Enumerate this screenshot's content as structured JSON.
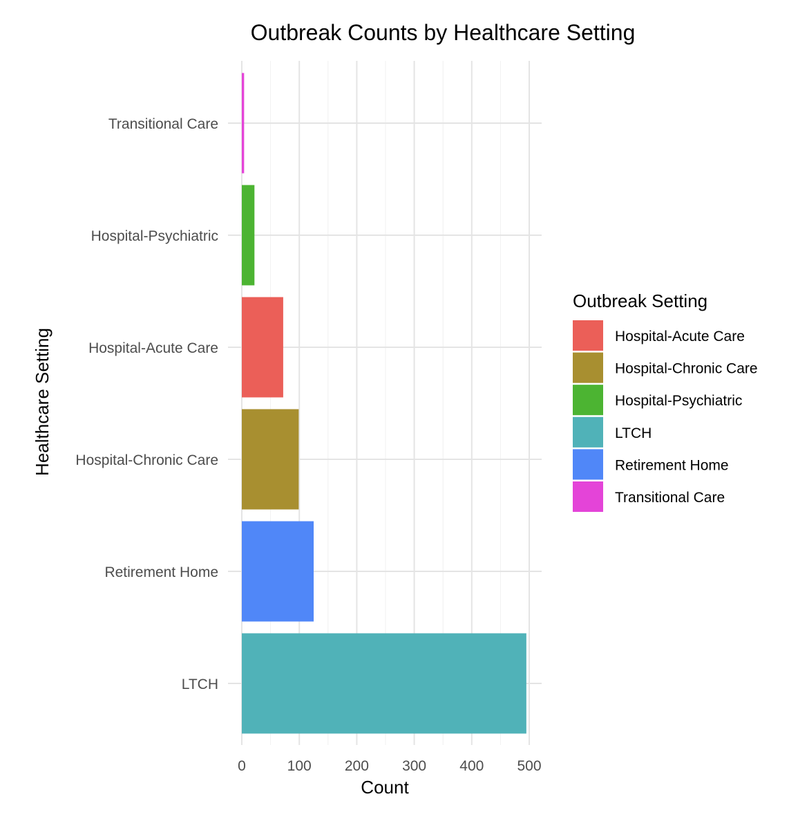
{
  "chart_data": {
    "type": "bar",
    "orientation": "horizontal",
    "title": "Outbreak Counts by Healthcare Setting",
    "xlabel": "Count",
    "ylabel": "Healthcare Setting",
    "xlim": [
      0,
      520
    ],
    "x_ticks": [
      0,
      100,
      200,
      300,
      400,
      500
    ],
    "categories": [
      "Transitional Care",
      "Hospital-Psychiatric",
      "Hospital-Acute Care",
      "Hospital-Chronic Care",
      "Retirement Home",
      "LTCH"
    ],
    "values": [
      4,
      22,
      72,
      99,
      125,
      495
    ],
    "colors": [
      "#E444D8",
      "#4CB432",
      "#EB5F58",
      "#A88F30",
      "#5087F8",
      "#50B2B8"
    ],
    "grid": true,
    "legend": {
      "title": "Outbreak Setting",
      "position": "right",
      "items": [
        {
          "label": "Hospital-Acute Care",
          "color": "#EB5F58"
        },
        {
          "label": "Hospital-Chronic Care",
          "color": "#A88F30"
        },
        {
          "label": "Hospital-Psychiatric",
          "color": "#4CB432"
        },
        {
          "label": "LTCH",
          "color": "#50B2B8"
        },
        {
          "label": "Retirement Home",
          "color": "#5087F8"
        },
        {
          "label": "Transitional Care",
          "color": "#E444D8"
        }
      ]
    }
  }
}
